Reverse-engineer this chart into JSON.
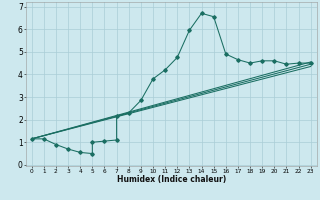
{
  "xlabel": "Humidex (Indice chaleur)",
  "bg_color": "#cde8ee",
  "grid_color": "#aacdd6",
  "line_color": "#1a6e62",
  "xlim": [
    -0.5,
    23.5
  ],
  "ylim": [
    -0.05,
    7.2
  ],
  "xticks": [
    0,
    1,
    2,
    3,
    4,
    5,
    6,
    7,
    8,
    9,
    10,
    11,
    12,
    13,
    14,
    15,
    16,
    17,
    18,
    19,
    20,
    21,
    22,
    23
  ],
  "yticks": [
    0,
    1,
    2,
    3,
    4,
    5,
    6,
    7
  ],
  "series1_x": [
    0,
    1,
    2,
    3,
    4,
    5,
    5,
    6,
    7,
    7,
    8,
    9,
    10,
    11,
    12,
    13,
    14,
    15,
    16,
    17,
    18,
    19,
    20,
    21,
    22,
    23
  ],
  "series1_y": [
    1.15,
    1.15,
    0.9,
    0.7,
    0.55,
    0.5,
    1.0,
    1.05,
    1.1,
    2.15,
    2.3,
    2.85,
    3.8,
    4.2,
    4.75,
    5.95,
    6.7,
    6.55,
    4.9,
    4.65,
    4.5,
    4.6,
    4.6,
    4.45,
    4.5,
    4.5
  ],
  "line2_x0": 0,
  "line2_y0": 1.15,
  "line2_x1": 23,
  "line2_y1": 4.55,
  "line3_x0": 0,
  "line3_y0": 1.15,
  "line3_x1": 23,
  "line3_y1": 4.35,
  "line4_x0": 0,
  "line4_y0": 1.15,
  "line4_x1": 23,
  "line4_y1": 4.45
}
